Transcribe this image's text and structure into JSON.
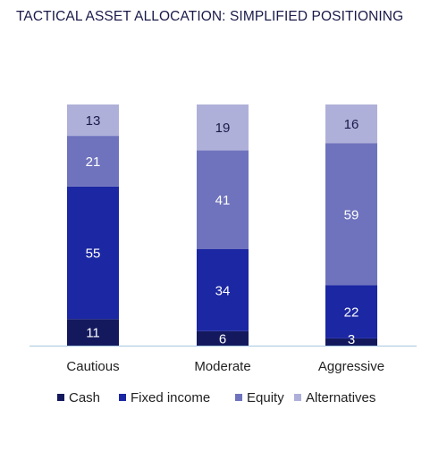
{
  "chart_data": {
    "type": "bar",
    "stacked": true,
    "title": "TACTICAL ASSET ALLOCATION: SIMPLIFIED POSITIONING",
    "categories": [
      "Cautious",
      "Moderate",
      "Aggressive"
    ],
    "series": [
      {
        "name": "Cash",
        "values": [
          11,
          6,
          3
        ],
        "color": "#14195e"
      },
      {
        "name": "Fixed income",
        "values": [
          55,
          34,
          22
        ],
        "color": "#1c27a3"
      },
      {
        "name": "Equity",
        "values": [
          21,
          41,
          59
        ],
        "color": "#6f73bd"
      },
      {
        "name": "Alternatives",
        "values": [
          13,
          19,
          16
        ],
        "color": "#afb0d9"
      }
    ],
    "ylim": [
      0,
      100
    ],
    "grid": false,
    "legend_position": "bottom",
    "text_colors": {
      "title": "#1a1a4a",
      "data_label": "#ffffff",
      "data_label_light": "#1a1a4a",
      "axis": "#222222"
    },
    "axis_color": "#a8c8e0"
  }
}
